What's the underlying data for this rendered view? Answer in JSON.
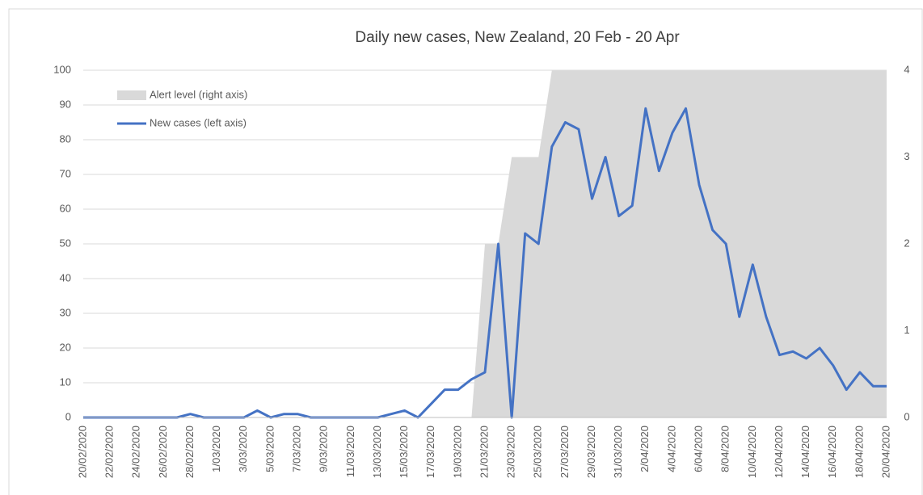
{
  "chart_data": {
    "type": "line",
    "title": "Daily new cases, New Zealand, 20 Feb - 20 Apr",
    "categories": [
      "20/02/2020",
      null,
      "22/02/2020",
      null,
      "24/02/2020",
      null,
      "26/02/2020",
      null,
      "28/02/2020",
      null,
      "1/03/2020",
      null,
      "3/03/2020",
      null,
      "5/03/2020",
      null,
      "7/03/2020",
      null,
      "9/03/2020",
      null,
      "11/03/2020",
      null,
      "13/03/2020",
      null,
      "15/03/2020",
      null,
      "17/03/2020",
      null,
      "19/03/2020",
      null,
      "21/03/2020",
      null,
      "23/03/2020",
      null,
      "25/03/2020",
      null,
      "27/03/2020",
      null,
      "29/03/2020",
      null,
      "31/03/2020",
      null,
      "2/04/2020",
      null,
      "4/04/2020",
      null,
      "6/04/2020",
      null,
      "8/04/2020",
      null,
      "10/04/2020",
      null,
      "12/04/2020",
      null,
      "14/04/2020",
      null,
      "16/04/2020",
      null,
      "18/04/2020",
      null,
      "20/04/2020"
    ],
    "series": [
      {
        "name": "Alert level (right axis)",
        "color": "#d9d9d9",
        "style": "area",
        "axis": "y2",
        "values": [
          0,
          0,
          0,
          0,
          0,
          0,
          0,
          0,
          0,
          0,
          0,
          0,
          0,
          0,
          0,
          0,
          0,
          0,
          0,
          0,
          0,
          0,
          0,
          0,
          0,
          0,
          0,
          0,
          0,
          0,
          2,
          2,
          3,
          3,
          3,
          4,
          4,
          4,
          4,
          4,
          4,
          4,
          4,
          4,
          4,
          4,
          4,
          4,
          4,
          4,
          4,
          4,
          4,
          4,
          4,
          4,
          4,
          4,
          4,
          4,
          4
        ]
      },
      {
        "name": "New cases (left axis)",
        "color": "#4472c4",
        "style": "line",
        "values": [
          0,
          0,
          0,
          0,
          0,
          0,
          0,
          0,
          1,
          0,
          0,
          0,
          0,
          2,
          0,
          1,
          1,
          0,
          0,
          0,
          0,
          0,
          0,
          1,
          2,
          0,
          4,
          8,
          8,
          11,
          13,
          50,
          0,
          53,
          50,
          78,
          85,
          83,
          63,
          75,
          58,
          61,
          89,
          71,
          82,
          89,
          67,
          54,
          50,
          29,
          44,
          29,
          18,
          19,
          17,
          20,
          15,
          8,
          13,
          9,
          9
        ]
      }
    ],
    "ylim": [
      0,
      100
    ],
    "yticks": [
      0,
      10,
      20,
      30,
      40,
      50,
      60,
      70,
      80,
      90,
      100
    ],
    "y2lim": [
      0,
      4
    ],
    "y2ticks": [
      0,
      1,
      2,
      3,
      4
    ],
    "grid": true,
    "legend": "top-left"
  }
}
